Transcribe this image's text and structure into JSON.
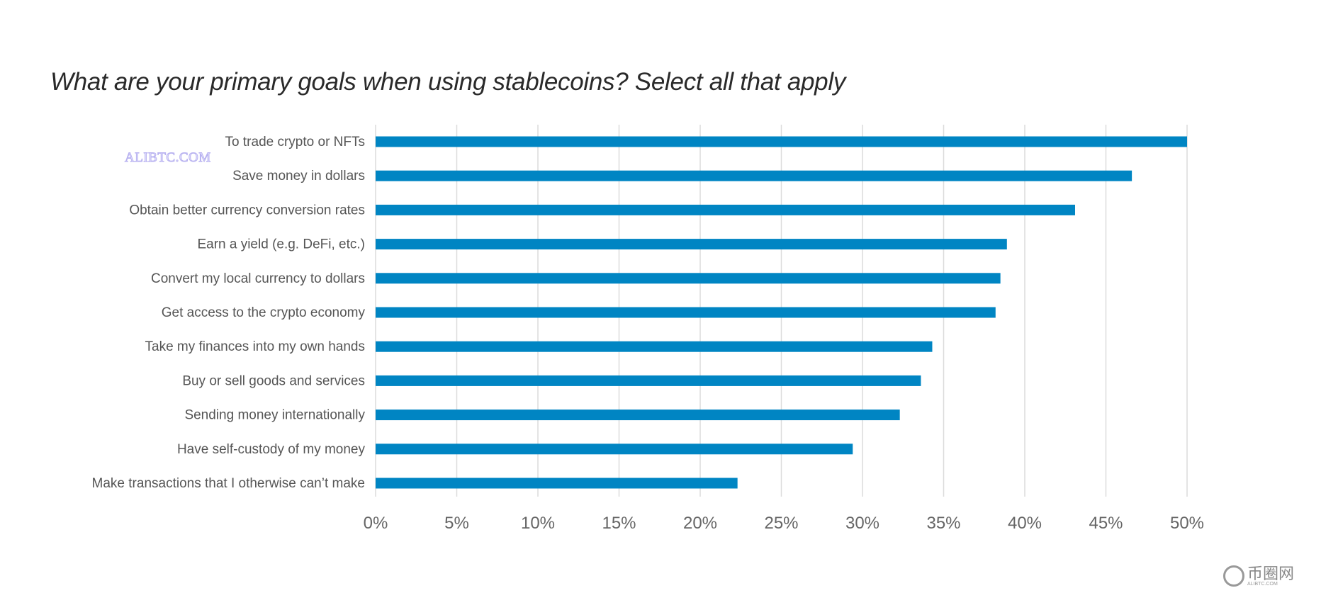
{
  "chart_data": {
    "type": "bar",
    "orientation": "horizontal",
    "title": "What are your primary goals when using stablecoins? Select all that apply",
    "categories": [
      "To trade crypto or NFTs",
      "Save money in dollars",
      "Obtain better currency conversion rates",
      "Earn a yield (e.g. DeFi, etc.)",
      "Convert my local currency to dollars",
      "Get access to the crypto economy",
      "Take my finances into my own hands",
      "Buy or sell goods and services",
      "Sending money internationally",
      "Have self-custody of my money",
      "Make transactions that I otherwise can’t make"
    ],
    "values": [
      50.0,
      46.6,
      43.1,
      38.9,
      38.5,
      38.2,
      34.3,
      33.6,
      32.3,
      29.4,
      22.3
    ],
    "unit": "%",
    "xlim": [
      0,
      50
    ],
    "xticks": [
      "0%",
      "5%",
      "10%",
      "15%",
      "20%",
      "25%",
      "30%",
      "35%",
      "40%",
      "45%",
      "50%"
    ],
    "grid": "vertical",
    "bar_color": "#0085c3",
    "grid_color": "#dcdcdc"
  },
  "watermark": "ALIBTC.COM",
  "logo": {
    "text": "币圈网",
    "sub": "ALIBTC.COM"
  }
}
